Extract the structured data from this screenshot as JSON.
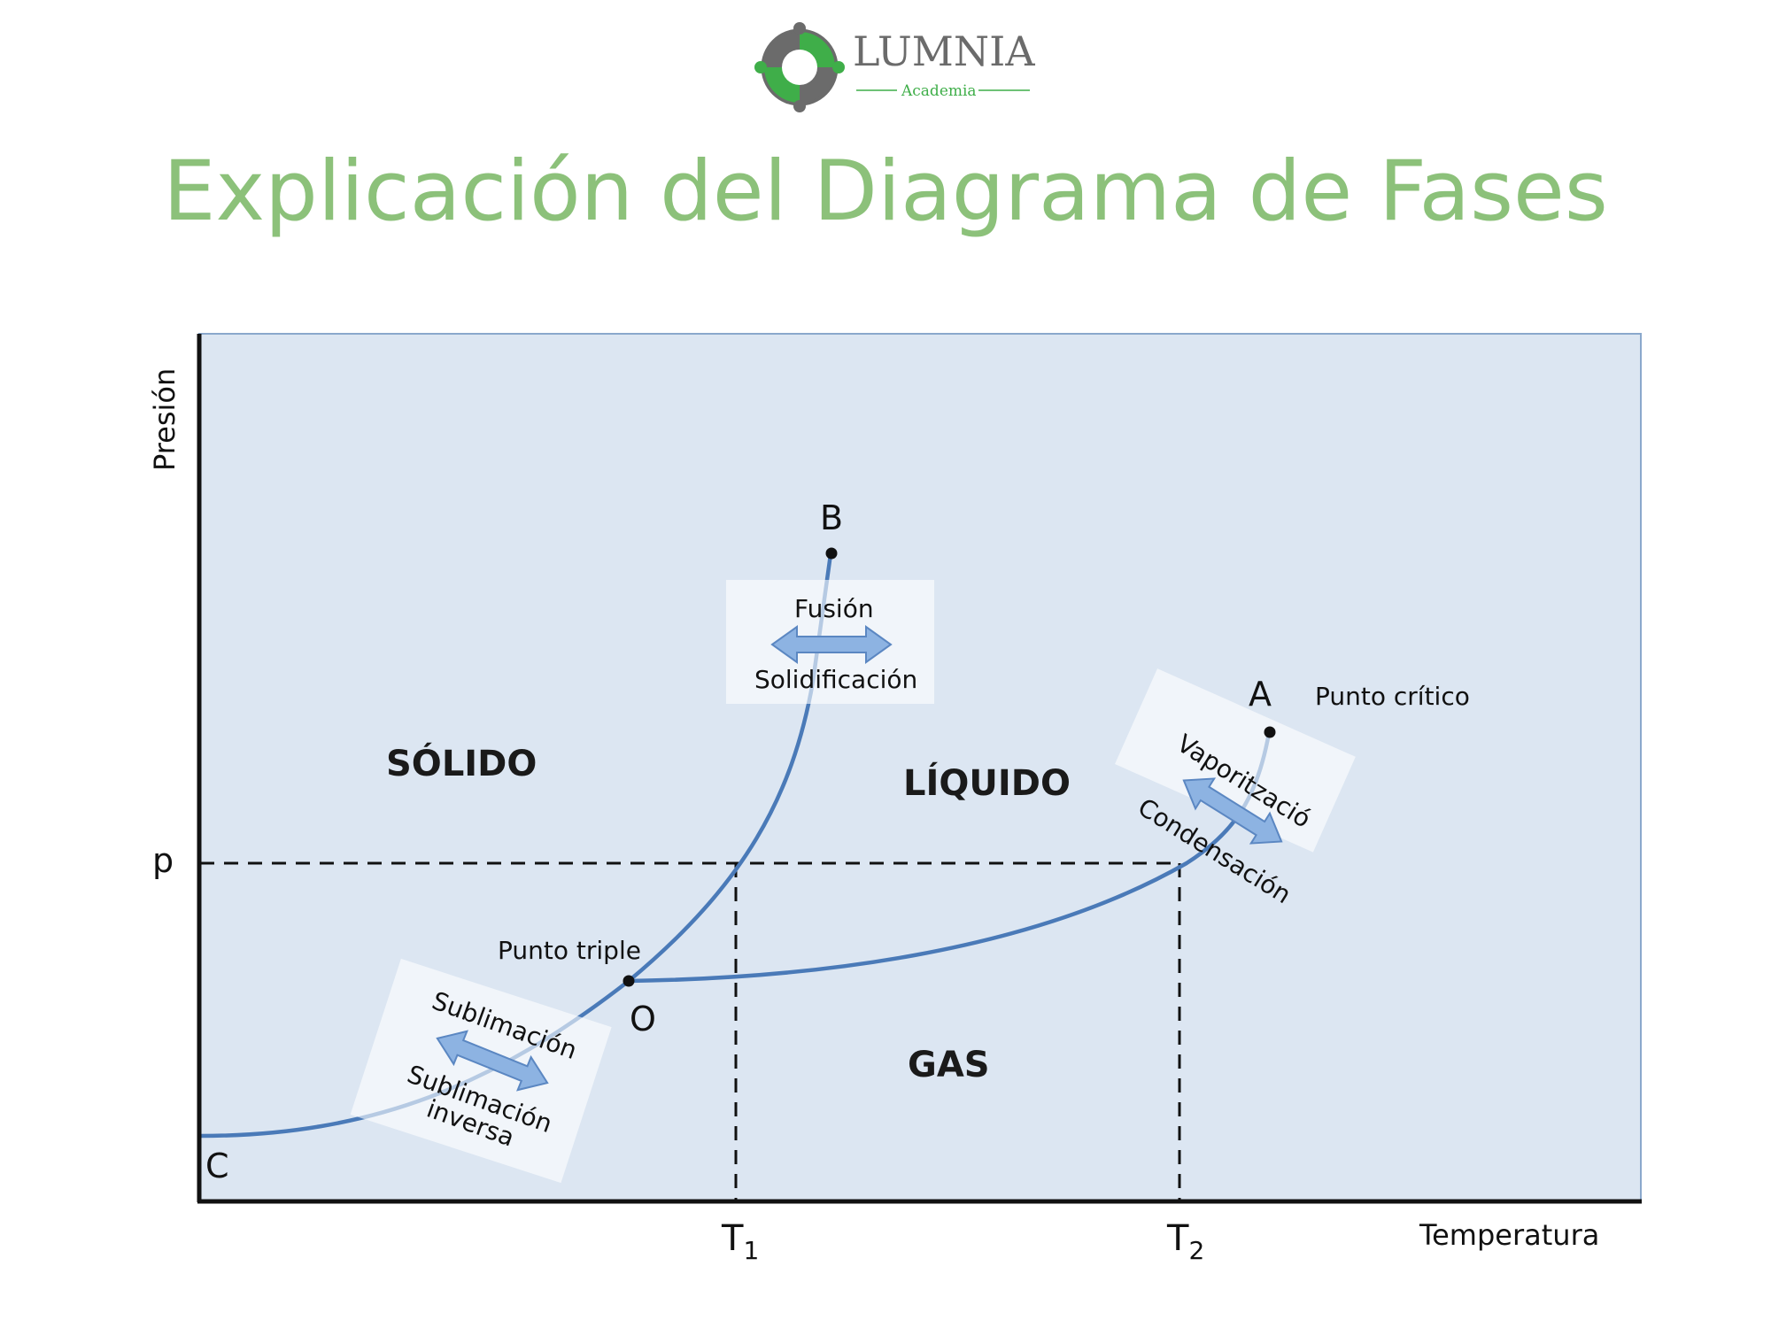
{
  "logo": {
    "name": "LUMNIA",
    "tagline": "Academia"
  },
  "title": "Explicación del Diagrama de Fases",
  "axes": {
    "y_label": "Presión",
    "x_label": "Temperatura"
  },
  "ticks": {
    "p": "p",
    "t1": "T",
    "t1_sub": "1",
    "t2": "T",
    "t2_sub": "2"
  },
  "points": {
    "A": "A",
    "A_note": "Punto crítico",
    "B": "B",
    "C": "C",
    "O": "O",
    "O_note": "Punto triple"
  },
  "regions": {
    "solid": "SÓLIDO",
    "liquid": "LÍQUIDO",
    "gas": "GAS"
  },
  "transitions": {
    "fusion": {
      "top": "Fusión",
      "bottom": "Solidificación"
    },
    "vaporization": {
      "top": "Vaporització",
      "bottom": "Condensación"
    },
    "sublimation": {
      "top": "Sublimación",
      "bottom_1": "Sublimación",
      "bottom_2": "inversa"
    }
  },
  "colors": {
    "plot_bg": "#dce6f2",
    "curve": "#4a7ab8",
    "arrow": "#8db3e2",
    "title": "#8cc17a",
    "logo_green": "#3fae49",
    "logo_gray": "#6b6b6b"
  }
}
